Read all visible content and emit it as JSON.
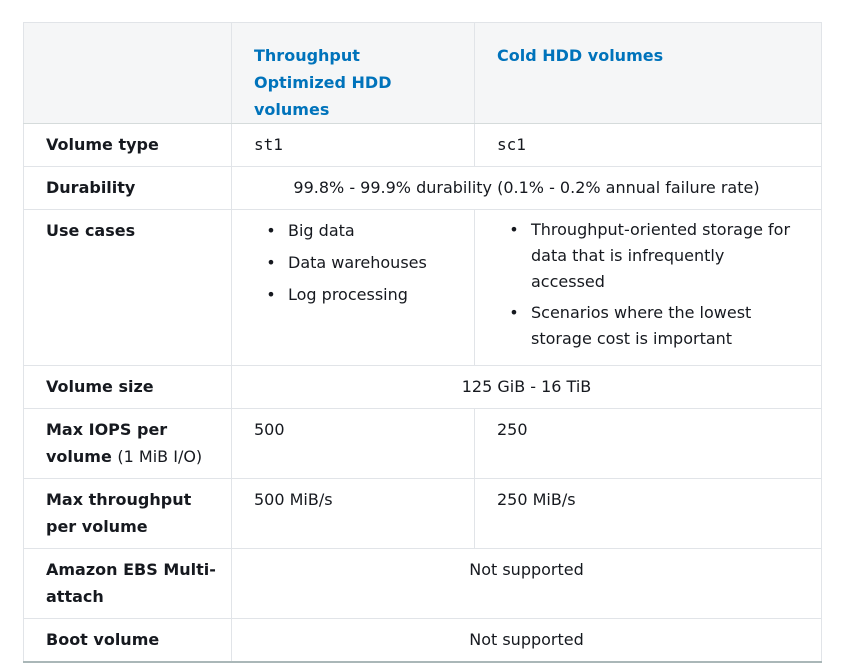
{
  "table": {
    "header": {
      "col0": "",
      "col1": "Throughput Optimized HDD volumes",
      "col2": "Cold HDD volumes"
    },
    "rows": {
      "volume_type": {
        "label": "Volume type",
        "st1": "st1",
        "sc1": "sc1"
      },
      "durability": {
        "label": "Durability",
        "value": "99.8% - 99.9% durability (0.1% - 0.2% annual failure rate)"
      },
      "use_cases": {
        "label": "Use cases",
        "st1_items": [
          "Big data",
          "Data warehouses",
          "Log processing"
        ],
        "sc1_items": [
          "Throughput-oriented storage for data that is infrequently accessed",
          "Scenarios where the lowest storage cost is important"
        ]
      },
      "volume_size": {
        "label": "Volume size",
        "value": "125 GiB - 16 TiB"
      },
      "max_iops": {
        "label": "Max IOPS per volume",
        "label_sub": "(1 MiB I/O)",
        "st1": "500",
        "sc1": "250"
      },
      "max_throughput": {
        "label": "Max throughput per volume",
        "st1": "500 MiB/s",
        "sc1": "250 MiB/s"
      },
      "multi_attach": {
        "label": "Amazon EBS Multi-attach",
        "value": "Not supported"
      },
      "boot_volume": {
        "label": "Boot volume",
        "value": "Not supported"
      }
    },
    "bullet_glyph": "•",
    "colors": {
      "header_text": "#0073bb",
      "header_bg": "#f5f6f7",
      "border": "#e1e4e8",
      "text": "#16191f"
    }
  }
}
